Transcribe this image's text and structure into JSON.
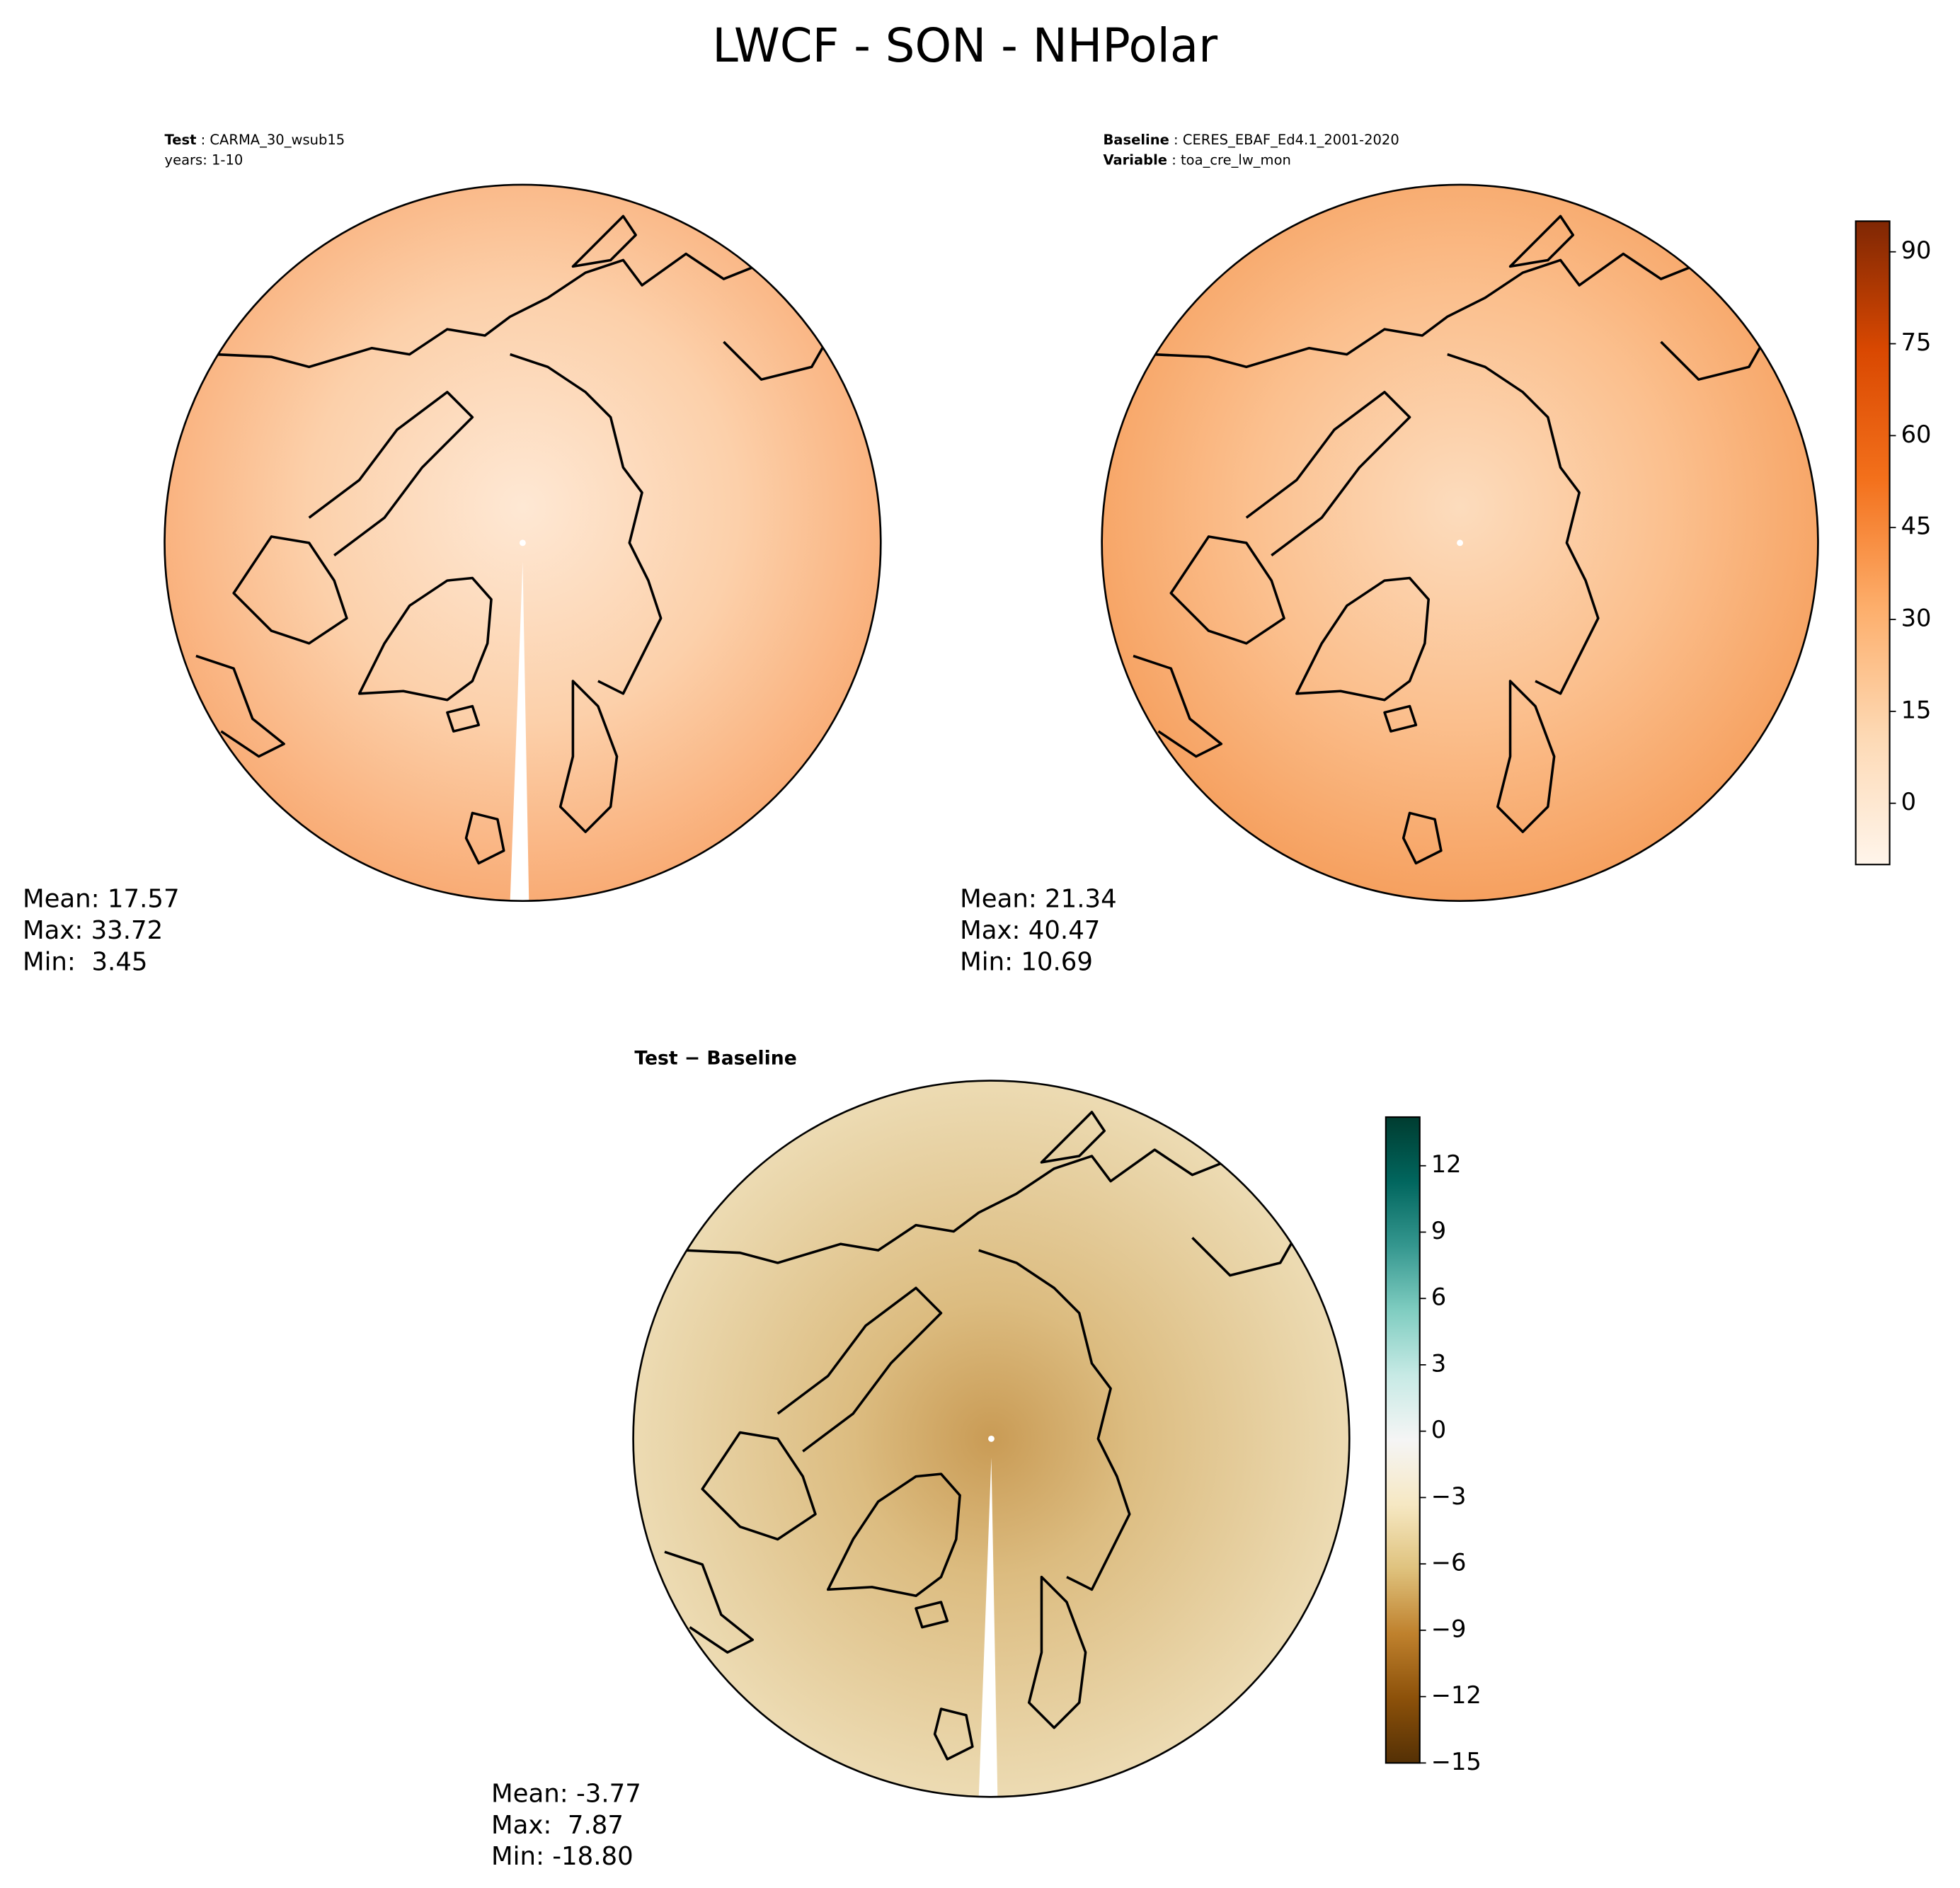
{
  "title": "LWCF - SON - NHPolar",
  "panels": [
    {
      "header": [
        {
          "bold": "Test",
          "text": " : CARMA_30_wsub15"
        },
        {
          "text": "years: 1-10"
        }
      ],
      "stats": [
        "Mean: 17.57",
        "Max: 33.72",
        "Min:  3.45"
      ]
    },
    {
      "header": [
        {
          "bold": "Baseline",
          "text": " : CERES_EBAF_Ed4.1_2001-2020"
        },
        {
          "bold": "Variable",
          "text": " : toa_cre_lw_mon"
        }
      ],
      "stats": [
        "Mean: 21.34",
        "Max: 40.47",
        "Min: 10.69"
      ]
    },
    {
      "header": [
        {
          "bold": "Test − Baseline"
        }
      ],
      "stats": [
        "Mean: -3.77",
        "Max:  7.87",
        "Min: -18.80"
      ]
    }
  ],
  "colorbars": [
    {
      "lim": [
        -10,
        95
      ],
      "ticks": [
        0,
        15,
        30,
        45,
        60,
        75,
        90
      ],
      "colors": [
        "#fff5eb",
        "#fdd9b4",
        "#fdae6b",
        "#f3701b",
        "#d94801",
        "#7f2704"
      ]
    },
    {
      "lim": [
        -15,
        14.2
      ],
      "ticks": [
        {
          "value": -15,
          "label": "−15"
        },
        {
          "value": -12,
          "label": "−12"
        },
        {
          "value": -9,
          "label": "−9"
        },
        {
          "value": -6,
          "label": "−6"
        },
        {
          "value": -3,
          "label": "−3"
        },
        0,
        3,
        6,
        9,
        12
      ],
      "colors": [
        "#543005",
        "#8c510a",
        "#bf812d",
        "#dfc27d",
        "#f6e8c3",
        "#f5f5f5",
        "#c7eae5",
        "#80cdc1",
        "#35978f",
        "#01665e",
        "#003c30"
      ]
    }
  ]
}
